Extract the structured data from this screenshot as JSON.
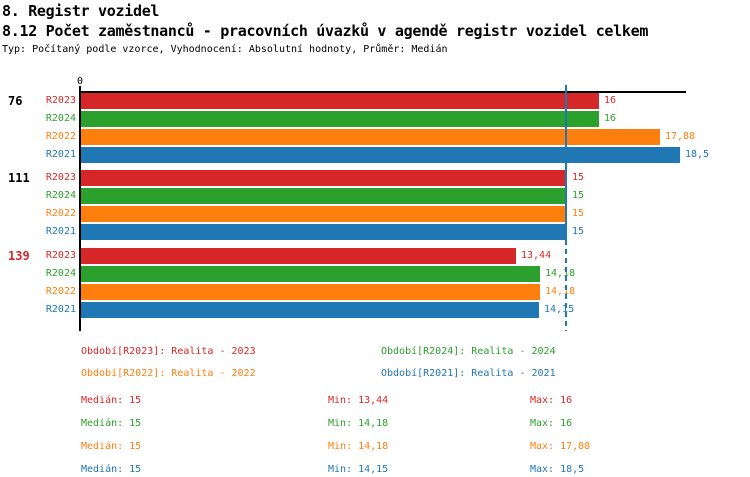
{
  "header": {
    "title_line1": "8. Registr vozidel",
    "title_line2": "8.12 Počet zaměstnanců - pracovních úvazků v agendě registr vozidel celkem",
    "subtitle": "Typ: Počítaný podle vzorce, Vyhodnocení: Absolutní hodnoty, Průměr: Medián"
  },
  "colors": {
    "R2023": "#d62728",
    "R2024": "#2ca02c",
    "R2022": "#ff7f0e",
    "R2021": "#1f77b4",
    "axis": "#000000",
    "median_line": "#1f77b4",
    "text": "#000000"
  },
  "chart_data": {
    "type": "bar",
    "orientation": "horizontal",
    "axis_zero_label": "0",
    "xlim": [
      0,
      18.7
    ],
    "median_line_value": 15,
    "series_order": [
      "R2023",
      "R2024",
      "R2022",
      "R2021"
    ],
    "groups": [
      {
        "label": "76",
        "label_color": "#000000",
        "bars": [
          {
            "series": "R2023",
            "value": 16,
            "display": "16"
          },
          {
            "series": "R2024",
            "value": 16,
            "display": "16"
          },
          {
            "series": "R2022",
            "value": 17.88,
            "display": "17,88"
          },
          {
            "series": "R2021",
            "value": 18.5,
            "display": "18,5"
          }
        ]
      },
      {
        "label": "111",
        "label_color": "#000000",
        "bars": [
          {
            "series": "R2023",
            "value": 15,
            "display": "15"
          },
          {
            "series": "R2024",
            "value": 15,
            "display": "15"
          },
          {
            "series": "R2022",
            "value": 15,
            "display": "15"
          },
          {
            "series": "R2021",
            "value": 15,
            "display": "15"
          }
        ]
      },
      {
        "label": "139",
        "label_color": "#d62728",
        "bars": [
          {
            "series": "R2023",
            "value": 13.44,
            "display": "13,44"
          },
          {
            "series": "R2024",
            "value": 14.18,
            "display": "14,18"
          },
          {
            "series": "R2022",
            "value": 14.18,
            "display": "14,18"
          },
          {
            "series": "R2021",
            "value": 14.15,
            "display": "14,15"
          }
        ]
      }
    ]
  },
  "legend": [
    {
      "text": "Období[R2023]: Realita - 2023",
      "series": "R2023",
      "col": 0,
      "row": 0
    },
    {
      "text": "Období[R2024]: Realita - 2024",
      "series": "R2024",
      "col": 1,
      "row": 0
    },
    {
      "text": "Období[R2022]: Realita - 2022",
      "series": "R2022",
      "col": 0,
      "row": 1
    },
    {
      "text": "Období[R2021]: Realita - 2021",
      "series": "R2021",
      "col": 1,
      "row": 1
    }
  ],
  "stats": [
    {
      "series": "R2023",
      "median": "Medián: 15",
      "min": "Min: 13,44",
      "max": "Max: 16"
    },
    {
      "series": "R2024",
      "median": "Medián: 15",
      "min": "Min: 14,18",
      "max": "Max: 16"
    },
    {
      "series": "R2022",
      "median": "Medián: 15",
      "min": "Min: 14,18",
      "max": "Max: 17,88"
    },
    {
      "series": "R2021",
      "median": "Medián: 15",
      "min": "Min: 14,15",
      "max": "Max: 18,5"
    }
  ]
}
